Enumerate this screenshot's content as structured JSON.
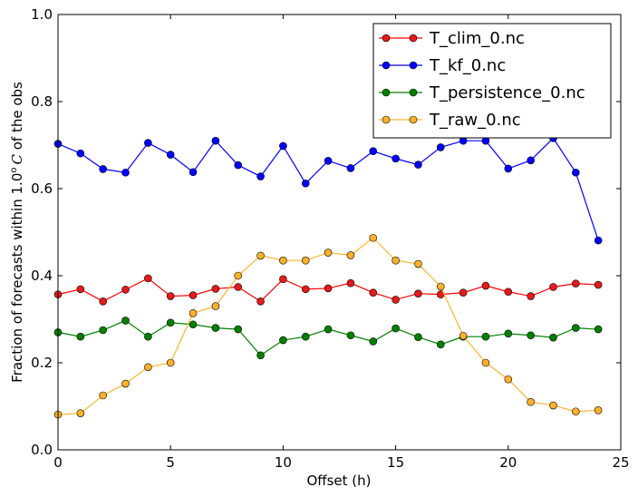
{
  "chart_data": {
    "type": "line",
    "title": "",
    "xlabel": "Offset (h)",
    "ylabel_prefix": "Fraction of forecasts within 1.0",
    "ylabel_degree": "o",
    "ylabel_unit": "C",
    "ylabel_suffix": " of the obs",
    "xlim": [
      0,
      25
    ],
    "ylim": [
      0.0,
      1.0
    ],
    "xticks": [
      0,
      5,
      10,
      15,
      20,
      25
    ],
    "xtick_labels": [
      "0",
      "5",
      "10",
      "15",
      "20",
      "25"
    ],
    "yticks": [
      0.0,
      0.2,
      0.4,
      0.6,
      0.8,
      1.0
    ],
    "ytick_labels": [
      "0.0",
      "0.2",
      "0.4",
      "0.6",
      "0.8",
      "1.0"
    ],
    "grid": false,
    "legend_position": "top-right",
    "x": [
      0,
      1,
      2,
      3,
      4,
      5,
      6,
      7,
      8,
      9,
      10,
      11,
      12,
      13,
      14,
      15,
      16,
      17,
      18,
      19,
      20,
      21,
      22,
      23,
      24
    ],
    "series": [
      {
        "name": "T_clim_0.nc",
        "color": "#ff0000",
        "marker_color": "#e41a1c",
        "values": [
          0.357,
          0.369,
          0.341,
          0.368,
          0.394,
          0.353,
          0.355,
          0.37,
          0.374,
          0.341,
          0.392,
          0.369,
          0.371,
          0.383,
          0.361,
          0.345,
          0.359,
          0.357,
          0.361,
          0.377,
          0.363,
          0.353,
          0.374,
          0.382,
          0.379
        ]
      },
      {
        "name": "T_kf_0.nc",
        "color": "#0000ff",
        "marker_color": "#0000ff",
        "values": [
          0.703,
          0.681,
          0.645,
          0.637,
          0.705,
          0.678,
          0.638,
          0.71,
          0.654,
          0.628,
          0.698,
          0.612,
          0.664,
          0.647,
          0.686,
          0.669,
          0.655,
          0.695,
          0.71,
          0.71,
          0.646,
          0.665,
          0.716,
          0.637,
          0.481
        ]
      },
      {
        "name": "T_persistence_0.nc",
        "color": "#008000",
        "marker_color": "#008000",
        "values": [
          0.27,
          0.26,
          0.275,
          0.297,
          0.26,
          0.292,
          0.288,
          0.28,
          0.277,
          0.217,
          0.252,
          0.26,
          0.277,
          0.263,
          0.249,
          0.279,
          0.259,
          0.242,
          0.26,
          0.26,
          0.267,
          0.263,
          0.258,
          0.28,
          0.277
        ]
      },
      {
        "name": "T_raw_0.nc",
        "color": "#ffb52e",
        "marker_color": "#fbb12a",
        "values": [
          0.081,
          0.084,
          0.125,
          0.152,
          0.19,
          0.2,
          0.314,
          0.33,
          0.4,
          0.446,
          0.435,
          0.435,
          0.453,
          0.447,
          0.487,
          0.435,
          0.427,
          0.375,
          0.262,
          0.2,
          0.162,
          0.11,
          0.102,
          0.088,
          0.091
        ]
      }
    ]
  }
}
